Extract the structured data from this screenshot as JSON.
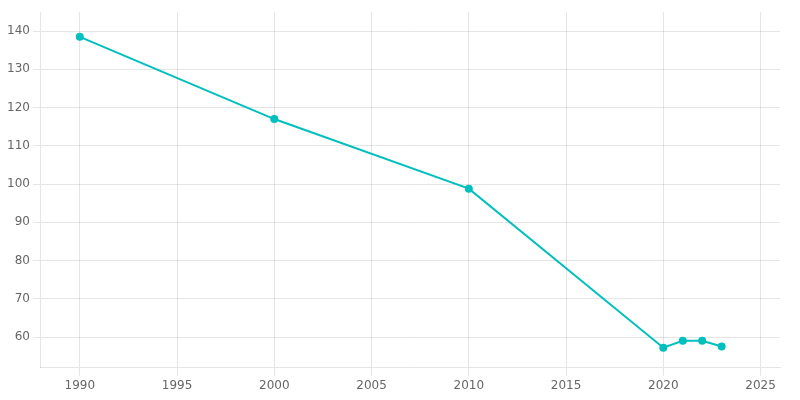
{
  "chart_data": {
    "type": "line",
    "x": [
      1990,
      2000,
      2010,
      2020,
      2021,
      2022,
      2023
    ],
    "values": [
      138.5,
      117.0,
      98.8,
      57.2,
      59.0,
      59.0,
      57.5
    ],
    "color": "#00BFBF",
    "marker": "circle",
    "xlim": [
      1988,
      2026
    ],
    "ylim": [
      52,
      145
    ],
    "xticks": [
      1990,
      1995,
      2000,
      2005,
      2010,
      2015,
      2020,
      2025
    ],
    "yticks": [
      60,
      70,
      80,
      90,
      100,
      110,
      120,
      130,
      140
    ],
    "grid": true
  }
}
